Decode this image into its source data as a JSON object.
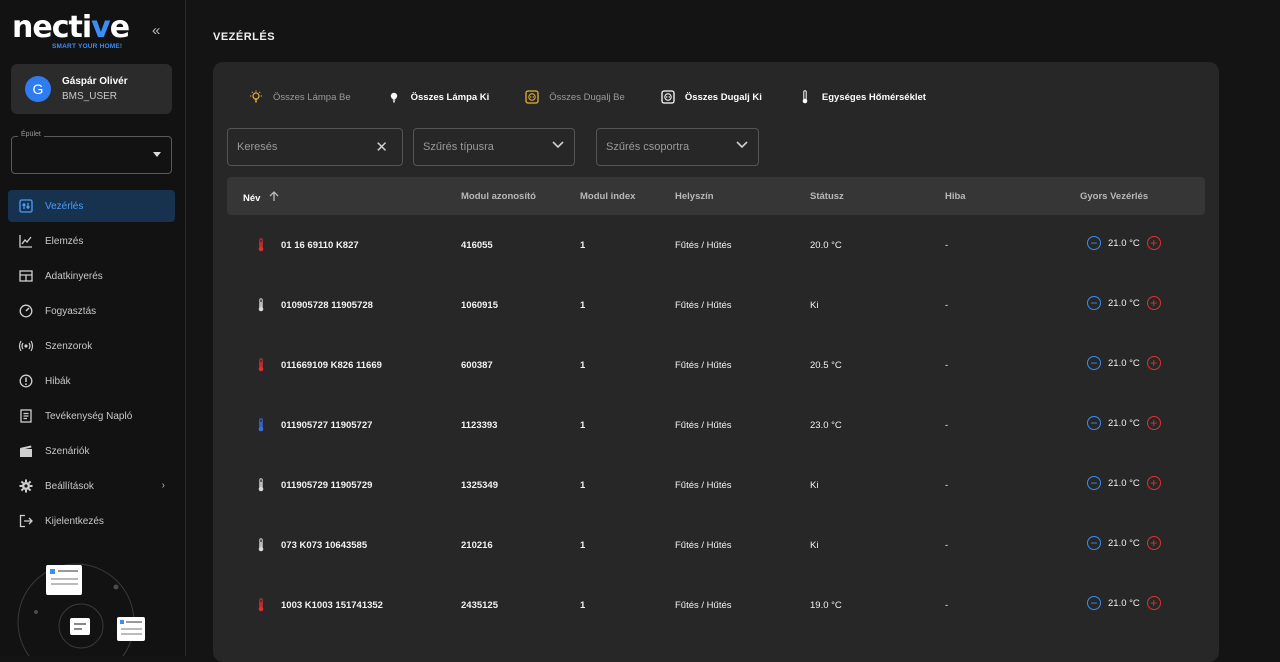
{
  "brand": {
    "name": "nective",
    "tagline": "SMART YOUR HOME!"
  },
  "user": {
    "initial": "G",
    "name": "Gáspár Olivér",
    "role": "BMS_USER"
  },
  "building": {
    "label": "Épület",
    "value": ""
  },
  "nav": [
    {
      "label": "Vezérlés",
      "icon": "control-icon",
      "active": true
    },
    {
      "label": "Elemzés",
      "icon": "chart-line-icon"
    },
    {
      "label": "Adatkinyerés",
      "icon": "table-icon"
    },
    {
      "label": "Fogyasztás",
      "icon": "gauge-icon"
    },
    {
      "label": "Szenzorok",
      "icon": "sensor-icon"
    },
    {
      "label": "Hibák",
      "icon": "error-icon"
    },
    {
      "label": "Tevékenység Napló",
      "icon": "log-icon"
    },
    {
      "label": "Szenáriók",
      "icon": "clapper-icon"
    },
    {
      "label": "Beállítások",
      "icon": "gear-icon",
      "submenu": true
    },
    {
      "label": "Kijelentkezés",
      "icon": "logout-icon"
    }
  ],
  "page_title": "VEZÉRLÉS",
  "quick_actions": [
    {
      "label": "Összes Lámpa Be",
      "icon": "bulb-on-icon",
      "style": "dim"
    },
    {
      "label": "Összes Lámpa Ki",
      "icon": "bulb-off-icon",
      "style": "bright"
    },
    {
      "label": "Összes Dugalj Be",
      "icon": "socket-on-icon",
      "style": "dim"
    },
    {
      "label": "Összes Dugalj Ki",
      "icon": "socket-off-icon",
      "style": "bright"
    },
    {
      "label": "Egységes Hőmérséklet",
      "icon": "thermometer-icon",
      "style": "bright"
    }
  ],
  "filters": {
    "search_placeholder": "Keresés",
    "type_placeholder": "Szűrés típusra",
    "group_placeholder": "Szűrés csoportra"
  },
  "table": {
    "columns": [
      "Név",
      "Modul azonosító",
      "Modul index",
      "Helyszín",
      "Státusz",
      "Hiba",
      "Gyors Vezérlés"
    ],
    "rows": [
      {
        "thermo": "red",
        "name": "01 16 69110 K827",
        "module_id": "416055",
        "index": "1",
        "location": "Fűtés / Hűtés",
        "status": "20.0 °C",
        "error": "-",
        "setpoint": "21.0 °C"
      },
      {
        "thermo": "white",
        "name": "010905728 11905728",
        "module_id": "1060915",
        "index": "1",
        "location": "Fűtés / Hűtés",
        "status": "Ki",
        "error": "-",
        "setpoint": "21.0 °C"
      },
      {
        "thermo": "red",
        "name": "011669109 K826 11669",
        "module_id": "600387",
        "index": "1",
        "location": "Fűtés / Hűtés",
        "status": "20.5 °C",
        "error": "-",
        "setpoint": "21.0 °C"
      },
      {
        "thermo": "blue",
        "name": "011905727 11905727",
        "module_id": "1123393",
        "index": "1",
        "location": "Fűtés / Hűtés",
        "status": "23.0 °C",
        "error": "-",
        "setpoint": "21.0 °C"
      },
      {
        "thermo": "white",
        "name": "011905729 11905729",
        "module_id": "1325349",
        "index": "1",
        "location": "Fűtés / Hűtés",
        "status": "Ki",
        "error": "-",
        "setpoint": "21.0 °C"
      },
      {
        "thermo": "white",
        "name": "073 K073 10643585",
        "module_id": "210216",
        "index": "1",
        "location": "Fűtés / Hűtés",
        "status": "Ki",
        "error": "-",
        "setpoint": "21.0 °C"
      },
      {
        "thermo": "red",
        "name": "1003 K1003 151741352",
        "module_id": "2435125",
        "index": "1",
        "location": "Fűtés / Hűtés",
        "status": "19.0 °C",
        "error": "-",
        "setpoint": "21.0 °C"
      }
    ]
  },
  "colors": {
    "accent": "#3a8ef6",
    "heat": "#d93030",
    "cool": "#3a6fe0",
    "neutral": "#d8d8d8"
  }
}
